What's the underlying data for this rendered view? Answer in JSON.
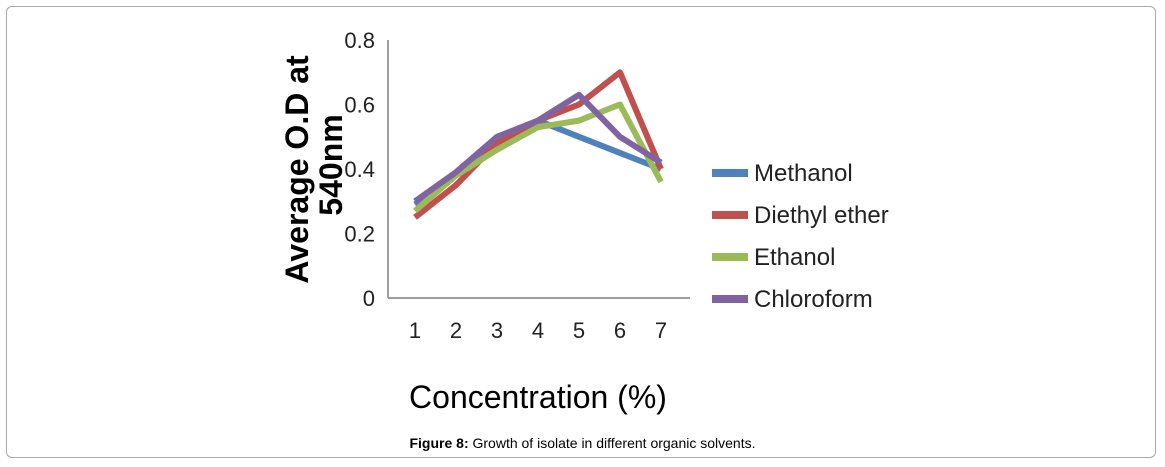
{
  "caption": {
    "label": "Figure 8:",
    "text": "Growth of isolate in different organic  solvents."
  },
  "chart_data": {
    "type": "line",
    "x": [
      1,
      2,
      3,
      4,
      5,
      6,
      7
    ],
    "xlabel": "Concentration (%)",
    "ylabel": "Average O.D at 540nm",
    "ylim": [
      0,
      0.8
    ],
    "yticks": [
      "0",
      "0.2",
      "0.4",
      "0.6",
      "0.8"
    ],
    "xticks": [
      "1",
      "2",
      "3",
      "4",
      "5",
      "6",
      "7"
    ],
    "grid": false,
    "legend": "right",
    "series": [
      {
        "name": "Methanol",
        "color": "#4f81bd",
        "values": [
          0.29,
          0.38,
          0.48,
          0.55,
          0.5,
          0.45,
          0.4
        ]
      },
      {
        "name": "Diethyl ether",
        "color": "#c0504d",
        "values": [
          0.25,
          0.35,
          0.48,
          0.55,
          0.6,
          0.7,
          0.4
        ]
      },
      {
        "name": "Ethanol",
        "color": "#9bbb59",
        "values": [
          0.27,
          0.38,
          0.46,
          0.53,
          0.55,
          0.6,
          0.36
        ]
      },
      {
        "name": "Chloroform",
        "color": "#8064a2",
        "values": [
          0.3,
          0.39,
          0.5,
          0.55,
          0.63,
          0.5,
          0.42
        ]
      }
    ]
  }
}
